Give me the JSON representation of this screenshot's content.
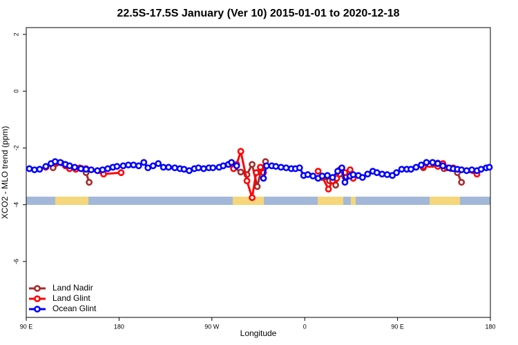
{
  "chart_data": {
    "type": "line",
    "title": "22.5S-17.5S January (Ver 10)   2015-01-01 to 2020-12-18",
    "x_label": "Longitude",
    "y_label": "XCO2 - MLO trend (ppm)",
    "xlim": [
      90,
      540
    ],
    "ylim": [
      -7.97,
      2.24
    ],
    "xticks": [
      {
        "value": 90,
        "label": "90 E"
      },
      180,
      {
        "value": 270,
        "label": "90 W"
      },
      {
        "value": 360,
        "label": "0"
      },
      {
        "value": 450,
        "label": "90 E"
      },
      {
        "value": 540,
        "label": "180"
      }
    ],
    "yticks": [
      -6,
      -4,
      -2,
      0,
      2
    ],
    "legend": "bottomleft",
    "series": [
      {
        "name": "Land Nadir",
        "color": "#a52a2a",
        "x": [
          116,
          124,
          132,
          138,
          144,
          148,
          151,
          null,
          291,
          298,
          304,
          309,
          314,
          318,
          322,
          null,
          377,
          384,
          390,
          394,
          399,
          null,
          475,
          484,
          489,
          495,
          502,
          508,
          512
        ],
        "values": [
          -2.7,
          -2.53,
          -2.63,
          -2.73,
          -2.73,
          -2.87,
          -3.21,
          null,
          -2.68,
          -2.85,
          -2.94,
          -2.58,
          -3.36,
          -2.73,
          -2.48,
          null,
          -3.04,
          -3.16,
          -3.31,
          -2.92,
          -3.02,
          null,
          -2.7,
          -2.58,
          -2.53,
          -2.73,
          -2.73,
          -2.87,
          -3.21
        ]
      },
      {
        "name": "Land Glint",
        "color": "#ff0000",
        "x": [
          109,
          118,
          128,
          132,
          138,
          142,
          148,
          165,
          182,
          null,
          291,
          294,
          298,
          304,
          309,
          313,
          317,
          320,
          null,
          373,
          377,
          383,
          387,
          391,
          394,
          399,
          404,
          407,
          null,
          475,
          481,
          489,
          494,
          498,
          504,
          512,
          527
        ],
        "values": [
          -2.68,
          -2.53,
          -2.63,
          -2.73,
          -2.75,
          -2.7,
          -2.73,
          -2.92,
          -2.87,
          null,
          -2.73,
          -2.58,
          -2.12,
          -3.16,
          -3.75,
          -2.87,
          -2.68,
          -2.87,
          null,
          -2.82,
          -3.02,
          -3.45,
          -3.16,
          -3.07,
          -2.77,
          -2.87,
          -2.77,
          -3.07,
          null,
          -2.65,
          -2.58,
          -2.65,
          -2.55,
          -2.7,
          -2.7,
          -2.77,
          -2.92
        ]
      },
      {
        "name": "Ocean Glint",
        "color": "#0000ff",
        "x": [
          93,
          98,
          103,
          109,
          114,
          118,
          123,
          128,
          132,
          137,
          143,
          148,
          153,
          159,
          164,
          169,
          174,
          178,
          184,
          189,
          194,
          199,
          204,
          208,
          213,
          218,
          223,
          228,
          234,
          239,
          243,
          248,
          253,
          257,
          262,
          267,
          271,
          277,
          281,
          286,
          289,
          294,
          null,
          320,
          323,
          328,
          332,
          337,
          342,
          347,
          351,
          355,
          359,
          363,
          368,
          373,
          377,
          382,
          387,
          392,
          396,
          399,
          404,
          407,
          412,
          416,
          421,
          426,
          430,
          435,
          440,
          445,
          449,
          454,
          459,
          463,
          468,
          473,
          478,
          484,
          489,
          494,
          500,
          504,
          508,
          512,
          517,
          522,
          527,
          531,
          536,
          539
        ],
        "values": [
          -2.73,
          -2.77,
          -2.75,
          -2.65,
          -2.55,
          -2.48,
          -2.51,
          -2.58,
          -2.63,
          -2.68,
          -2.73,
          -2.75,
          -2.77,
          -2.8,
          -2.77,
          -2.73,
          -2.68,
          -2.65,
          -2.63,
          -2.6,
          -2.6,
          -2.63,
          -2.51,
          -2.7,
          -2.63,
          -2.55,
          -2.68,
          -2.68,
          -2.7,
          -2.73,
          -2.75,
          -2.8,
          -2.73,
          -2.7,
          -2.73,
          -2.7,
          -2.7,
          -2.68,
          -2.63,
          -2.58,
          -2.51,
          -2.63,
          null,
          -3.07,
          -2.63,
          -2.63,
          -2.65,
          -2.68,
          -2.7,
          -2.73,
          -2.73,
          -2.7,
          -2.97,
          -2.94,
          -2.99,
          -3.07,
          -2.99,
          -2.97,
          -3.04,
          -2.82,
          -2.7,
          -3.21,
          -2.99,
          -2.94,
          -2.97,
          -3.04,
          -2.92,
          -2.82,
          -2.87,
          -2.92,
          -2.94,
          -2.97,
          -2.87,
          -2.75,
          -2.75,
          -2.75,
          -2.68,
          -2.6,
          -2.51,
          -2.51,
          -2.55,
          -2.63,
          -2.7,
          -2.73,
          -2.75,
          -2.77,
          -2.8,
          -2.77,
          -2.8,
          -2.75,
          -2.7,
          -2.68
        ]
      }
    ]
  }
}
